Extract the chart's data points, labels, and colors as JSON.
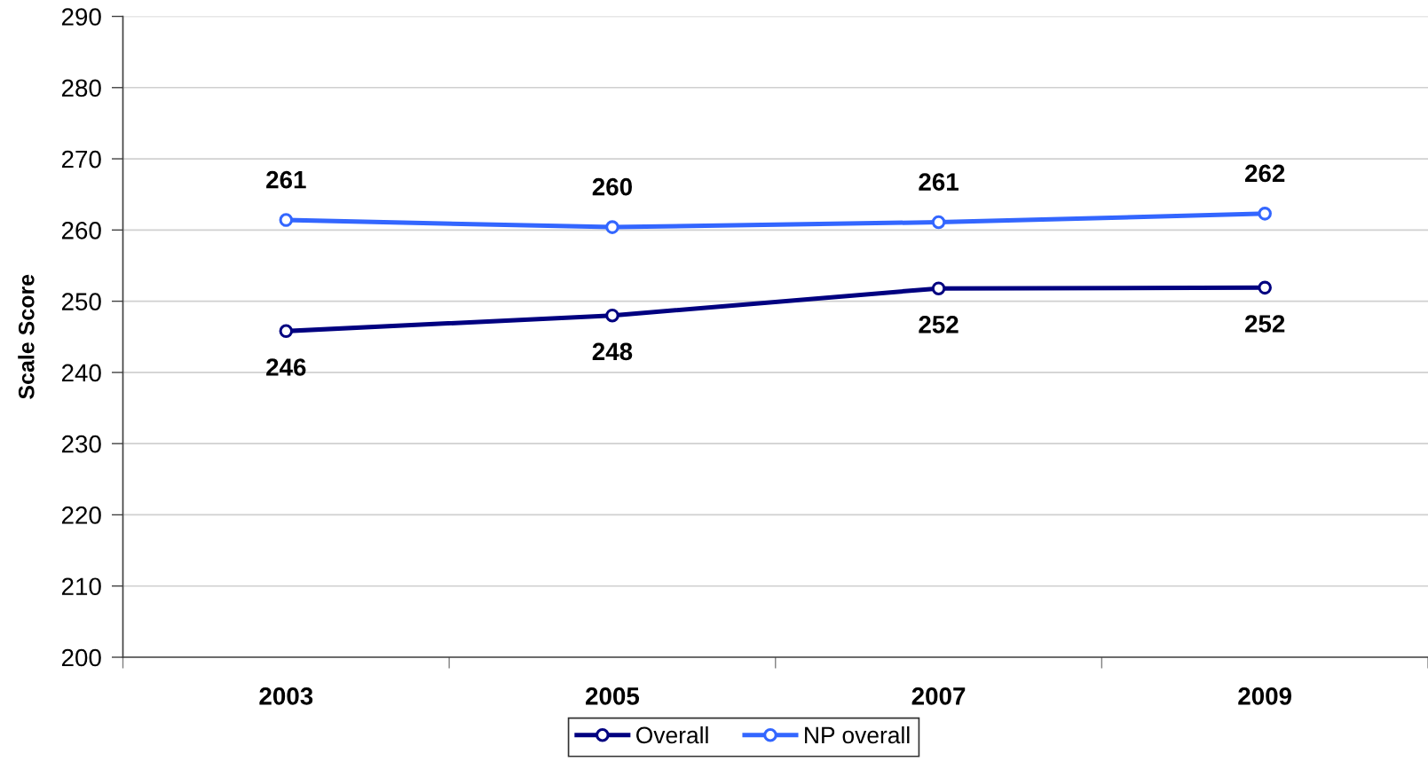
{
  "chart_data": {
    "type": "line",
    "ylabel": "Scale Score",
    "categories": [
      "2003",
      "2005",
      "2007",
      "2009"
    ],
    "series": [
      {
        "name": "Overall",
        "color": "#000080",
        "values": [
          245.8,
          248.0,
          251.8,
          251.9
        ],
        "value_labels": [
          "246",
          "248",
          "252",
          "252"
        ]
      },
      {
        "name": "NP overall",
        "color": "#3366ff",
        "values": [
          261.4,
          260.4,
          261.1,
          262.3
        ],
        "value_labels": [
          "261",
          "260",
          "261",
          "262"
        ]
      }
    ],
    "ylim": [
      200,
      290
    ],
    "yticks": [
      200,
      210,
      220,
      230,
      240,
      250,
      260,
      270,
      280,
      290
    ],
    "grid": "y",
    "legend": "bottom",
    "marker": "circle",
    "line_style": "solid"
  }
}
